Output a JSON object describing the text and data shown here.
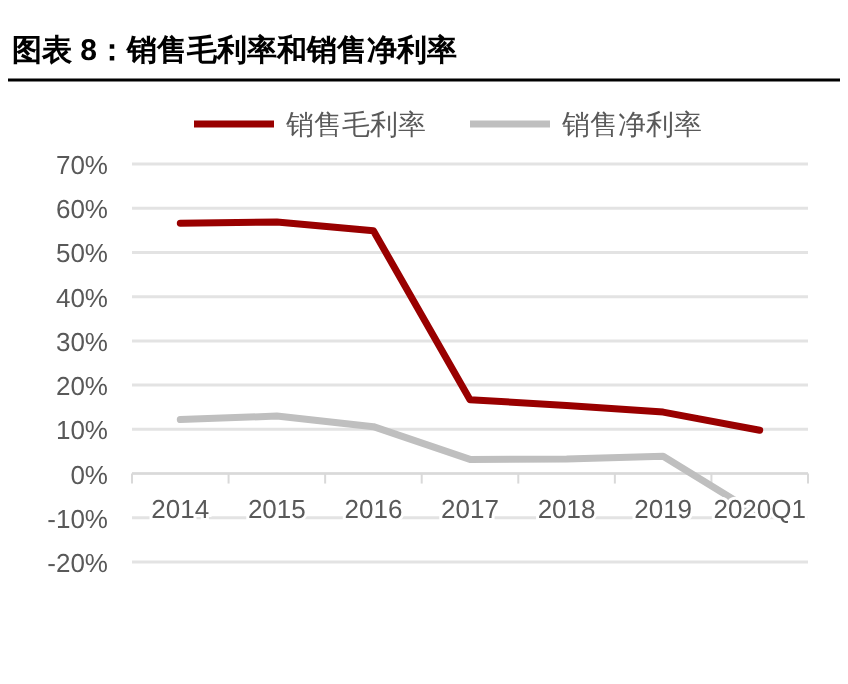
{
  "chart_data": {
    "type": "line",
    "title": "图表 8：销售毛利率和销售净利率",
    "categories": [
      "2014",
      "2015",
      "2016",
      "2017",
      "2018",
      "2019",
      "2020Q1"
    ],
    "series": [
      {
        "name": "销售毛利率",
        "color": "#990000",
        "values": [
          56.6,
          56.9,
          54.9,
          16.7,
          15.4,
          13.9,
          9.8
        ]
      },
      {
        "name": "销售净利率",
        "color": "#bfbfbf",
        "values": [
          12.2,
          13.0,
          10.6,
          3.2,
          3.3,
          3.9,
          -9.5
        ]
      }
    ],
    "ylim": [
      -20,
      70
    ],
    "yticks": [
      {
        "value": -20,
        "label": "-20%"
      },
      {
        "value": -10,
        "label": "-10%"
      },
      {
        "value": 0,
        "label": "0%"
      },
      {
        "value": 10,
        "label": "10%"
      },
      {
        "value": 20,
        "label": "20%"
      },
      {
        "value": 30,
        "label": "30%"
      },
      {
        "value": 40,
        "label": "40%"
      },
      {
        "value": 50,
        "label": "50%"
      },
      {
        "value": 60,
        "label": "60%"
      },
      {
        "value": 70,
        "label": "70%"
      }
    ],
    "grid": "y",
    "legend": "top",
    "marker": "none",
    "line_style": "solid"
  }
}
